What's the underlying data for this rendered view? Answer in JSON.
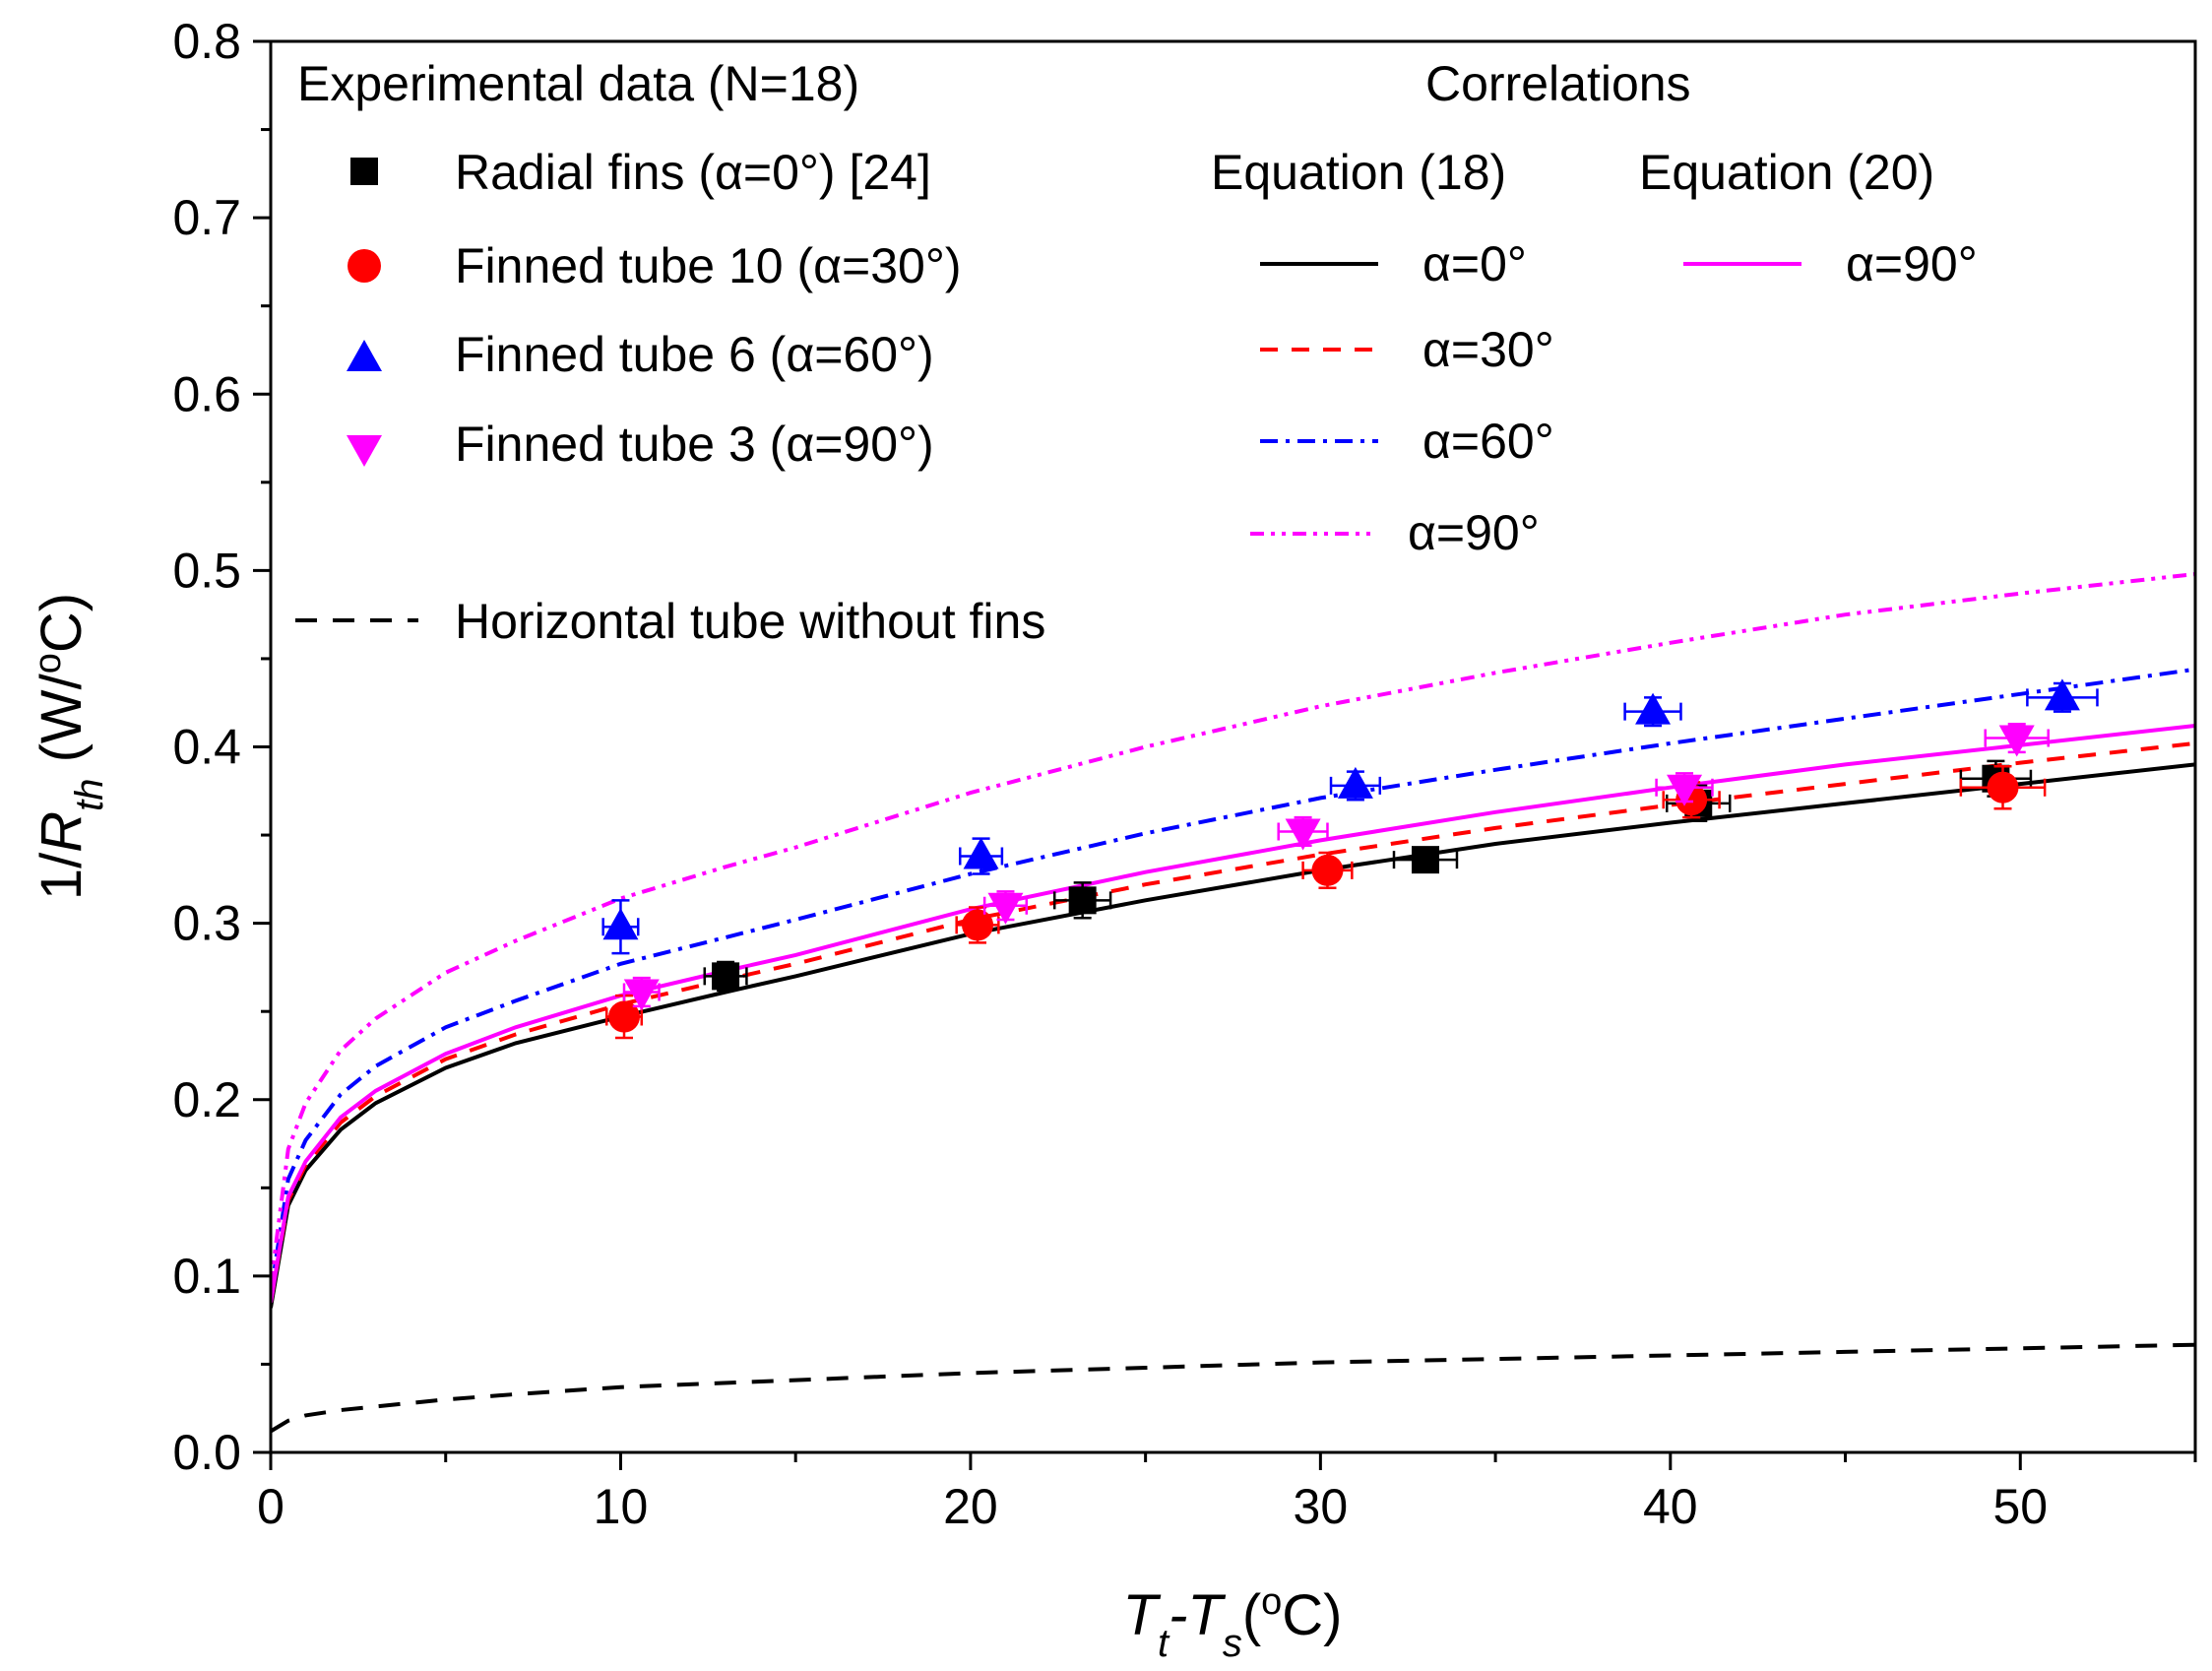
{
  "chart_data": {
    "type": "scatter",
    "xlabel": {
      "base": "T",
      "sub1": "t",
      "mid": "-T",
      "sub2": "s",
      "pre_unit": "(",
      "deg": "o",
      "post_unit": "C)"
    },
    "ylabel": {
      "pre": "1/",
      "italic": "R",
      "sub": "th",
      "unit_pre": " (W/",
      "deg": "o",
      "unit_post": "C)"
    },
    "xlim": [
      0,
      55
    ],
    "ylim": [
      0,
      0.8
    ],
    "x_ticks": [
      0,
      10,
      20,
      30,
      40,
      50
    ],
    "x_tick_labels": [
      "0",
      "10",
      "20",
      "30",
      "40",
      "50"
    ],
    "y_ticks": [
      0,
      0.1,
      0.2,
      0.3,
      0.4,
      0.5,
      0.6,
      0.7,
      0.8
    ],
    "y_tick_labels": [
      "0.0",
      "0.1",
      "0.2",
      "0.3",
      "0.4",
      "0.5",
      "0.6",
      "0.7",
      "0.8"
    ],
    "grid": false,
    "legend": {
      "experimental_heading": "Experimental data (N=18)",
      "correlations_heading": "Correlations",
      "eq18_heading": "Equation (18)",
      "eq20_heading": "Equation (20)",
      "horizontal_label": "Horizontal tube without fins"
    },
    "series": [
      {
        "name": "Radial fins (α=0°) [24]",
        "kind": "points",
        "marker": "square",
        "color": "#000000",
        "points": [
          {
            "x": 13.0,
            "y": 0.27,
            "xerr": 0.6,
            "yerr": 0.008
          },
          {
            "x": 23.2,
            "y": 0.313,
            "xerr": 0.8,
            "yerr": 0.01
          },
          {
            "x": 33.0,
            "y": 0.336,
            "xerr": 0.9,
            "yerr": 0.006
          },
          {
            "x": 40.8,
            "y": 0.368,
            "xerr": 0.9,
            "yerr": 0.01
          },
          {
            "x": 49.3,
            "y": 0.382,
            "xerr": 1.0,
            "yerr": 0.01
          }
        ]
      },
      {
        "name": "Finned tube 10 (α=30°)",
        "kind": "points",
        "marker": "circle",
        "color": "#ff0000",
        "points": [
          {
            "x": 10.1,
            "y": 0.247,
            "xerr": 0.5,
            "yerr": 0.012
          },
          {
            "x": 20.2,
            "y": 0.299,
            "xerr": 0.6,
            "yerr": 0.01
          },
          {
            "x": 30.2,
            "y": 0.33,
            "xerr": 0.7,
            "yerr": 0.01
          },
          {
            "x": 40.6,
            "y": 0.37,
            "xerr": 0.8,
            "yerr": 0.01
          },
          {
            "x": 49.5,
            "y": 0.377,
            "xerr": 1.2,
            "yerr": 0.012
          }
        ]
      },
      {
        "name": "Finned tube 6 (α=60°)",
        "kind": "points",
        "marker": "triangle-up",
        "color": "#0000ff",
        "points": [
          {
            "x": 10.0,
            "y": 0.298,
            "xerr": 0.5,
            "yerr": 0.015
          },
          {
            "x": 20.3,
            "y": 0.338,
            "xerr": 0.6,
            "yerr": 0.01
          },
          {
            "x": 31.0,
            "y": 0.378,
            "xerr": 0.7,
            "yerr": 0.008
          },
          {
            "x": 39.5,
            "y": 0.42,
            "xerr": 0.8,
            "yerr": 0.008
          },
          {
            "x": 51.2,
            "y": 0.428,
            "xerr": 1.0,
            "yerr": 0.008
          }
        ]
      },
      {
        "name": "Finned tube 3 (α=90°)",
        "kind": "points",
        "marker": "triangle-down",
        "color": "#ff00ff",
        "points": [
          {
            "x": 10.6,
            "y": 0.261,
            "xerr": 0.5,
            "yerr": 0.008
          },
          {
            "x": 21.0,
            "y": 0.31,
            "xerr": 0.6,
            "yerr": 0.008
          },
          {
            "x": 29.5,
            "y": 0.352,
            "xerr": 0.7,
            "yerr": 0.008
          },
          {
            "x": 40.4,
            "y": 0.377,
            "xerr": 0.8,
            "yerr": 0.008
          },
          {
            "x": 49.9,
            "y": 0.405,
            "xerr": 0.9,
            "yerr": 0.008
          }
        ]
      },
      {
        "name": "α=0°",
        "group": "Equation (18)",
        "kind": "line",
        "dash": "solid",
        "color": "#000000",
        "x": [
          0.0,
          0.5,
          1,
          2,
          3,
          5,
          7,
          10,
          13,
          15,
          20,
          25,
          30,
          35,
          40,
          45,
          50,
          55
        ],
        "y": [
          0.082,
          0.14,
          0.16,
          0.183,
          0.198,
          0.218,
          0.232,
          0.247,
          0.261,
          0.27,
          0.294,
          0.313,
          0.33,
          0.345,
          0.357,
          0.368,
          0.379,
          0.39
        ]
      },
      {
        "name": "α=30°",
        "group": "Equation (18)",
        "kind": "line",
        "dash": "dashed",
        "color": "#ff0000",
        "x": [
          0.0,
          0.5,
          1,
          2,
          3,
          5,
          7,
          10,
          13,
          15,
          20,
          25,
          30,
          35,
          40,
          45,
          50,
          55
        ],
        "y": [
          0.085,
          0.143,
          0.163,
          0.187,
          0.202,
          0.223,
          0.237,
          0.254,
          0.268,
          0.277,
          0.302,
          0.322,
          0.339,
          0.354,
          0.367,
          0.379,
          0.391,
          0.402
        ]
      },
      {
        "name": "α=60°",
        "group": "Equation (18)",
        "kind": "line",
        "dash": "dashdot",
        "color": "#0000ff",
        "x": [
          0.0,
          0.5,
          1,
          2,
          3,
          5,
          7,
          10,
          13,
          15,
          20,
          25,
          30,
          35,
          40,
          45,
          50,
          55
        ],
        "y": [
          0.09,
          0.155,
          0.177,
          0.203,
          0.219,
          0.241,
          0.256,
          0.277,
          0.292,
          0.302,
          0.328,
          0.351,
          0.371,
          0.387,
          0.402,
          0.416,
          0.43,
          0.444
        ]
      },
      {
        "name": "α=90°",
        "group": "Equation (18)",
        "kind": "line",
        "dash": "dashdotdot",
        "color": "#ff00ff",
        "x": [
          0.0,
          0.5,
          1,
          2,
          3,
          5,
          7,
          10,
          13,
          15,
          20,
          25,
          30,
          35,
          40,
          45,
          50,
          55
        ],
        "y": [
          0.095,
          0.172,
          0.198,
          0.228,
          0.246,
          0.272,
          0.29,
          0.314,
          0.332,
          0.343,
          0.374,
          0.4,
          0.423,
          0.442,
          0.459,
          0.475,
          0.487,
          0.498
        ]
      },
      {
        "name": "α=90°",
        "group": "Equation (20)",
        "kind": "line",
        "dash": "solid",
        "color": "#ff00ff",
        "x": [
          0.0,
          0.5,
          1,
          2,
          3,
          5,
          7,
          10,
          13,
          15,
          20,
          25,
          30,
          35,
          40,
          45,
          50,
          55
        ],
        "y": [
          0.085,
          0.145,
          0.165,
          0.19,
          0.205,
          0.226,
          0.241,
          0.259,
          0.273,
          0.282,
          0.308,
          0.329,
          0.347,
          0.363,
          0.377,
          0.39,
          0.401,
          0.412
        ]
      },
      {
        "name": "Horizontal tube without fins",
        "kind": "line",
        "dash": "dashed",
        "color": "#000000",
        "x": [
          0.0,
          0.5,
          1,
          2,
          3,
          5,
          7,
          10,
          15,
          20,
          25,
          30,
          35,
          40,
          45,
          50,
          55
        ],
        "y": [
          0.012,
          0.018,
          0.021,
          0.024,
          0.026,
          0.03,
          0.033,
          0.037,
          0.041,
          0.045,
          0.048,
          0.051,
          0.053,
          0.055,
          0.057,
          0.059,
          0.061
        ]
      }
    ]
  }
}
